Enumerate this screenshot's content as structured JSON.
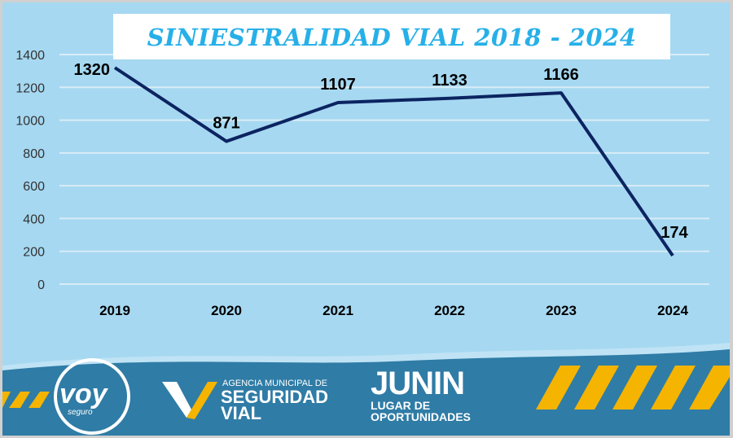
{
  "chart_data": {
    "type": "line",
    "title": "SINIESTRALIDAD VIAL 2018 - 2024",
    "categories": [
      "2019",
      "2020",
      "2021",
      "2022",
      "2023",
      "2024"
    ],
    "values": [
      1320,
      871,
      1107,
      1133,
      1166,
      174
    ],
    "data_labels": [
      "1320",
      "871",
      "1107",
      "1133",
      "1166",
      "174"
    ],
    "y_ticks": [
      "0",
      "200",
      "400",
      "600",
      "800",
      "1000",
      "1200",
      "1400"
    ],
    "ylim": [
      0,
      1400
    ],
    "grid": true,
    "xlabel": "",
    "ylabel": "",
    "colors": {
      "line": "#0c2461",
      "background": "#a6d8f1",
      "grid": "#d9ecf6",
      "title": "#27b0e8"
    }
  },
  "footer": {
    "voy_logo": "voy",
    "voy_sub": "seguro",
    "agency_small": "AGENCIA MUNICIPAL DE",
    "agency_big1": "SEGURIDAD",
    "agency_big2": "VIAL",
    "junin_logo": "JUNIN",
    "junin_sub1": "LUGAR DE",
    "junin_sub2": "OPORTUNIDADES",
    "colors": {
      "band": "#2f7ca6",
      "stripes": "#f5b400"
    }
  }
}
